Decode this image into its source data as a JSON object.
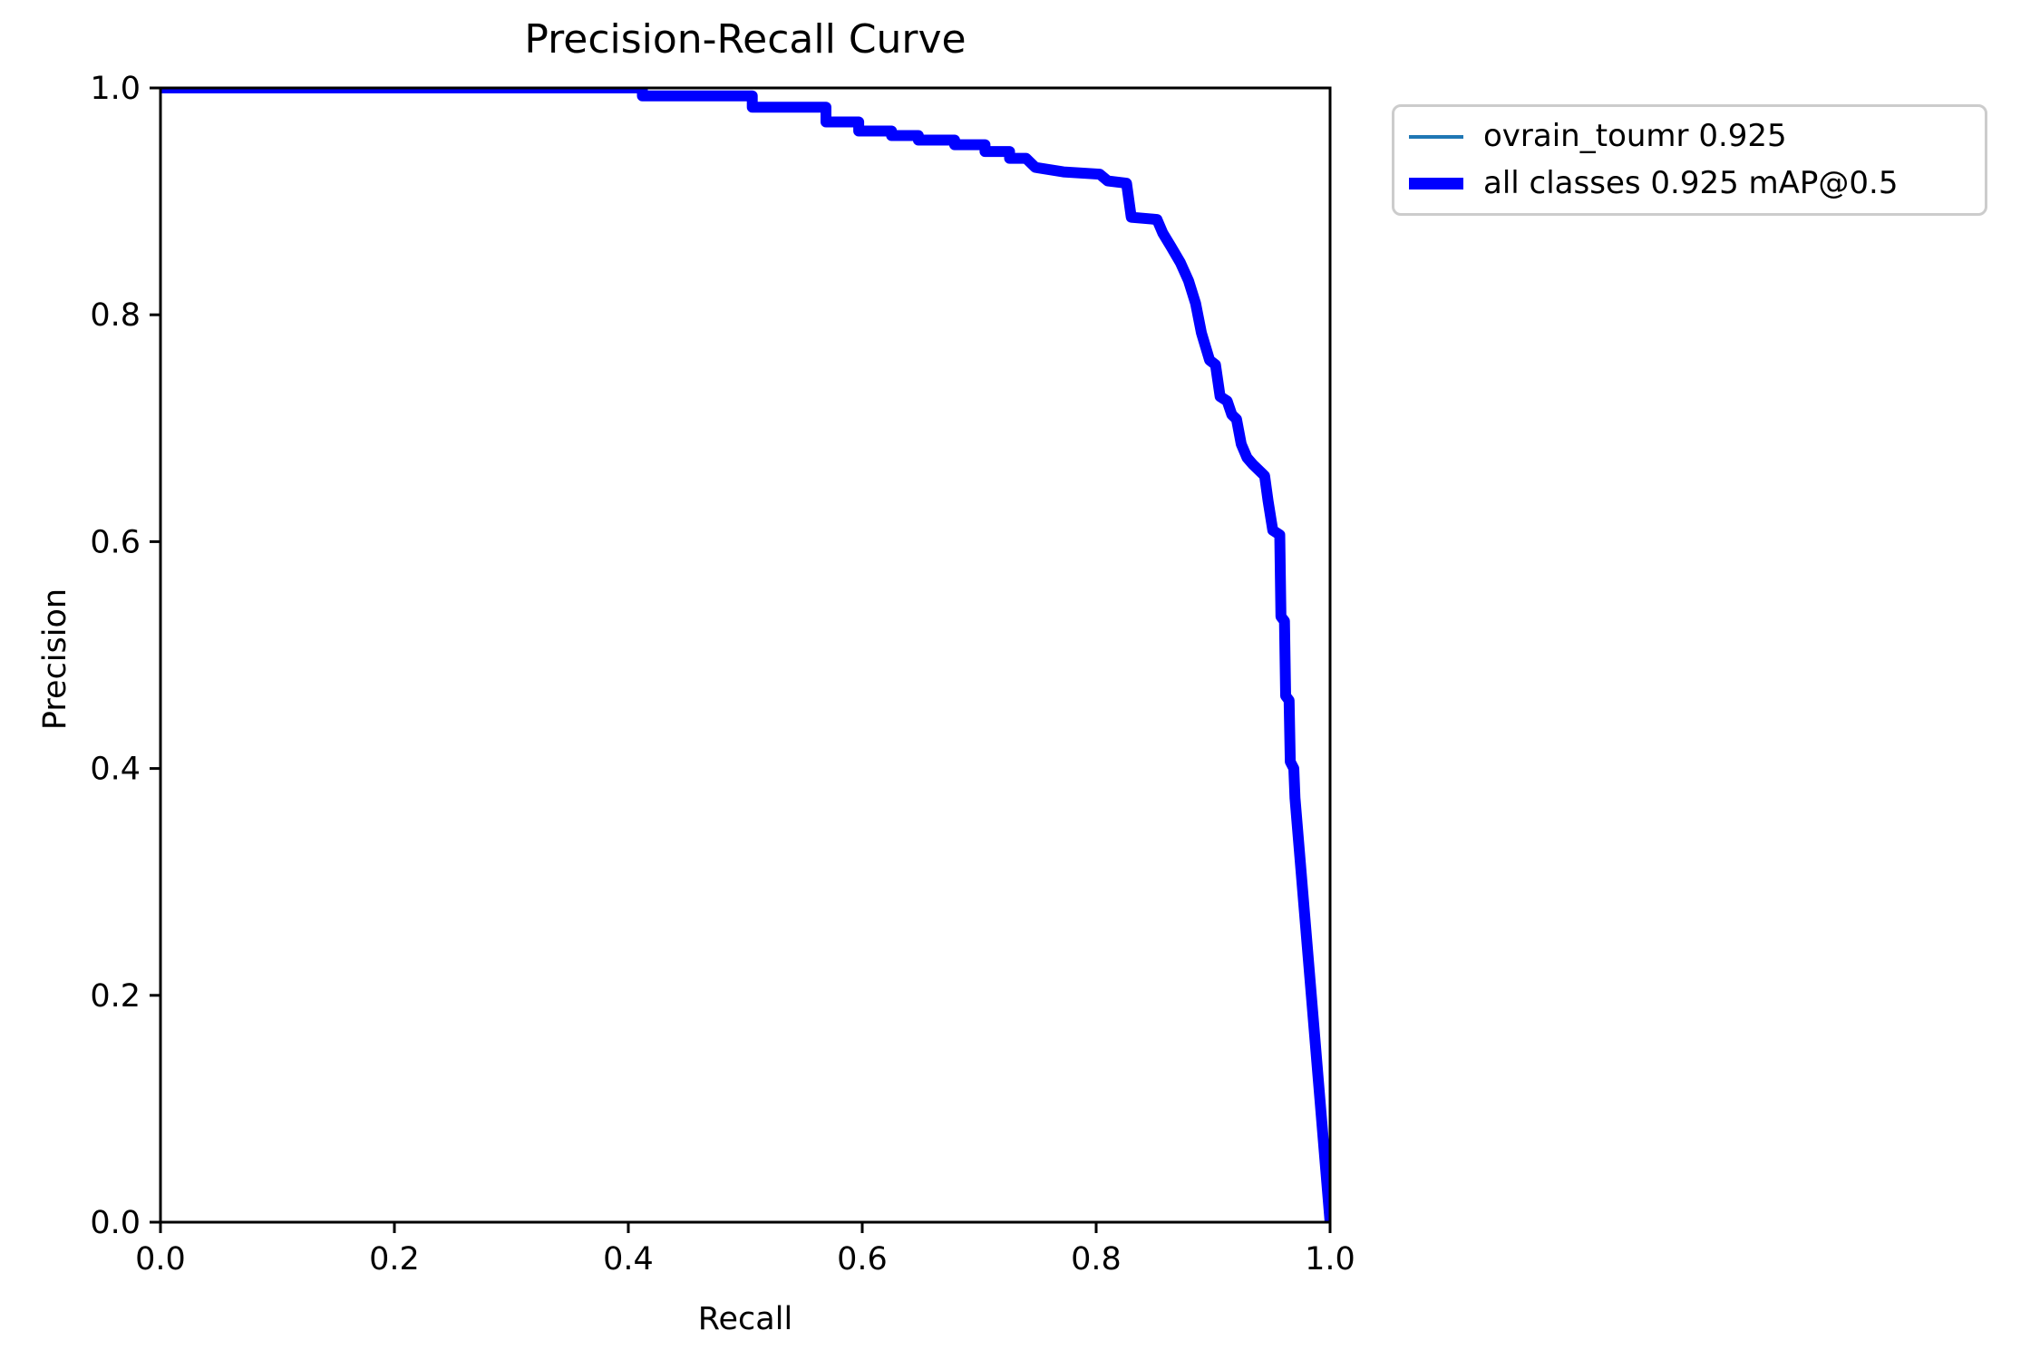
{
  "figure": {
    "background_color": "#ffffff",
    "spine_color": "#000000"
  },
  "chart_data": {
    "type": "line",
    "title": "Precision-Recall Curve",
    "xlabel": "Recall",
    "ylabel": "Precision",
    "xlim": [
      0.0,
      1.0
    ],
    "ylim": [
      0.0,
      1.0
    ],
    "x_ticks": [
      "0.0",
      "0.2",
      "0.4",
      "0.6",
      "0.8",
      "1.0"
    ],
    "y_ticks": [
      "0.0",
      "0.2",
      "0.4",
      "0.6",
      "0.8",
      "1.0"
    ],
    "grid": false,
    "legend_position": "outside-upper-right",
    "series": [
      {
        "name": "ovrain_toumr 0.925",
        "color": "#1f77b4",
        "linewidth": 3.5
      },
      {
        "name": "all classes 0.925 mAP@0.5",
        "color": "#0000ff",
        "linewidth": 12
      }
    ],
    "note": "both series coincide on the same precision-recall path",
    "points": [
      [
        0.0,
        1.0
      ],
      [
        0.412,
        1.0
      ],
      [
        0.412,
        0.993
      ],
      [
        0.506,
        0.993
      ],
      [
        0.506,
        0.983
      ],
      [
        0.569,
        0.983
      ],
      [
        0.569,
        0.97
      ],
      [
        0.597,
        0.97
      ],
      [
        0.597,
        0.962
      ],
      [
        0.625,
        0.962
      ],
      [
        0.625,
        0.958
      ],
      [
        0.648,
        0.958
      ],
      [
        0.648,
        0.954
      ],
      [
        0.679,
        0.954
      ],
      [
        0.679,
        0.95
      ],
      [
        0.705,
        0.95
      ],
      [
        0.705,
        0.944
      ],
      [
        0.726,
        0.944
      ],
      [
        0.726,
        0.938
      ],
      [
        0.74,
        0.938
      ],
      [
        0.748,
        0.93
      ],
      [
        0.772,
        0.926
      ],
      [
        0.803,
        0.924
      ],
      [
        0.81,
        0.918
      ],
      [
        0.826,
        0.916
      ],
      [
        0.83,
        0.886
      ],
      [
        0.852,
        0.884
      ],
      [
        0.857,
        0.872
      ],
      [
        0.864,
        0.86
      ],
      [
        0.872,
        0.846
      ],
      [
        0.879,
        0.83
      ],
      [
        0.885,
        0.81
      ],
      [
        0.89,
        0.784
      ],
      [
        0.897,
        0.76
      ],
      [
        0.902,
        0.756
      ],
      [
        0.906,
        0.728
      ],
      [
        0.912,
        0.724
      ],
      [
        0.916,
        0.712
      ],
      [
        0.92,
        0.708
      ],
      [
        0.924,
        0.686
      ],
      [
        0.929,
        0.674
      ],
      [
        0.934,
        0.668
      ],
      [
        0.944,
        0.658
      ],
      [
        0.947,
        0.636
      ],
      [
        0.951,
        0.61
      ],
      [
        0.957,
        0.606
      ],
      [
        0.958,
        0.534
      ],
      [
        0.961,
        0.53
      ],
      [
        0.962,
        0.464
      ],
      [
        0.965,
        0.46
      ],
      [
        0.966,
        0.406
      ],
      [
        0.969,
        0.4
      ],
      [
        0.97,
        0.374
      ],
      [
        1.0,
        0.0
      ]
    ],
    "legend": {
      "items": [
        {
          "label": "ovrain_toumr 0.925",
          "color": "#1f77b4",
          "thickness": 4
        },
        {
          "label": "all classes 0.925 mAP@0.5",
          "color": "#0000ff",
          "thickness": 13
        }
      ]
    }
  }
}
